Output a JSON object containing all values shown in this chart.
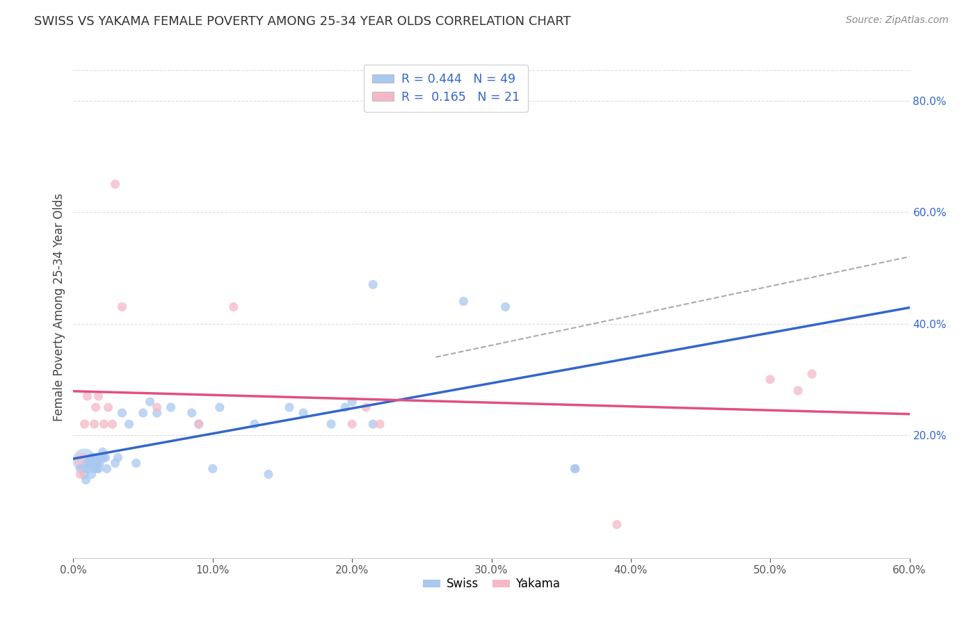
{
  "title": "SWISS VS YAKAMA FEMALE POVERTY AMONG 25-34 YEAR OLDS CORRELATION CHART",
  "source": "Source: ZipAtlas.com",
  "ylabel": "Female Poverty Among 25-34 Year Olds",
  "xlim": [
    0.0,
    0.6
  ],
  "ylim": [
    -0.02,
    0.88
  ],
  "background_color": "#ffffff",
  "swiss_color": "#a8c8f0",
  "yakama_color": "#f5b8c8",
  "swiss_line_color": "#3366cc",
  "yakama_line_color": "#e05080",
  "dashed_line_color": "#aaaaaa",
  "swiss_r": 0.444,
  "swiss_n": 49,
  "yakama_r": 0.165,
  "yakama_n": 21,
  "swiss_x": [
    0.005,
    0.008,
    0.009,
    0.01,
    0.01,
    0.012,
    0.013,
    0.013,
    0.015,
    0.015,
    0.015,
    0.016,
    0.016,
    0.017,
    0.017,
    0.017,
    0.018,
    0.019,
    0.02,
    0.021,
    0.022,
    0.023,
    0.024,
    0.03,
    0.032,
    0.035,
    0.04,
    0.045,
    0.05,
    0.055,
    0.06,
    0.07,
    0.085,
    0.09,
    0.1,
    0.105,
    0.13,
    0.14,
    0.155,
    0.165,
    0.185,
    0.195,
    0.2,
    0.215,
    0.215,
    0.28,
    0.31,
    0.36,
    0.36
  ],
  "swiss_y": [
    0.14,
    0.13,
    0.12,
    0.14,
    0.15,
    0.15,
    0.13,
    0.16,
    0.14,
    0.15,
    0.16,
    0.15,
    0.16,
    0.14,
    0.15,
    0.15,
    0.14,
    0.15,
    0.16,
    0.17,
    0.16,
    0.16,
    0.14,
    0.15,
    0.16,
    0.24,
    0.22,
    0.15,
    0.24,
    0.26,
    0.24,
    0.25,
    0.24,
    0.22,
    0.14,
    0.25,
    0.22,
    0.13,
    0.25,
    0.24,
    0.22,
    0.25,
    0.26,
    0.47,
    0.22,
    0.44,
    0.43,
    0.14,
    0.14
  ],
  "yakama_x": [
    0.005,
    0.008,
    0.01,
    0.015,
    0.016,
    0.018,
    0.022,
    0.025,
    0.028,
    0.03,
    0.035,
    0.06,
    0.09,
    0.115,
    0.2,
    0.21,
    0.22,
    0.39,
    0.5,
    0.52,
    0.53
  ],
  "yakama_y": [
    0.13,
    0.22,
    0.27,
    0.22,
    0.25,
    0.27,
    0.22,
    0.25,
    0.22,
    0.65,
    0.43,
    0.25,
    0.22,
    0.43,
    0.22,
    0.25,
    0.22,
    0.04,
    0.3,
    0.28,
    0.31
  ],
  "xtick_labels": [
    "0.0%",
    "10.0%",
    "20.0%",
    "30.0%",
    "40.0%",
    "50.0%",
    "60.0%"
  ],
  "xtick_values": [
    0.0,
    0.1,
    0.2,
    0.3,
    0.4,
    0.5,
    0.6
  ],
  "ytick_right_labels": [
    "20.0%",
    "40.0%",
    "60.0%",
    "80.0%"
  ],
  "ytick_right_values": [
    0.2,
    0.4,
    0.6,
    0.8
  ],
  "grid_color": "#dddddd",
  "legend_text_color": "#3366cc",
  "legend_r_values": [
    "0.444",
    "0.165"
  ],
  "legend_n_values": [
    "49",
    "21"
  ]
}
